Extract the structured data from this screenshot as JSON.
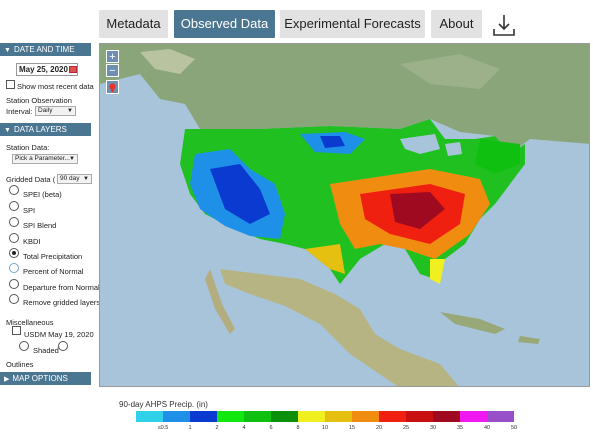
{
  "nav": {
    "metadata": "Metadata",
    "observed": "Observed Data",
    "forecasts": "Experimental Forecasts",
    "about": "About",
    "download_icon": "download-icon"
  },
  "sidebar": {
    "date_time": {
      "header": "DATE AND TIME",
      "date": "May 25, 2020",
      "show_recent": "Show most recent data",
      "station_obs": "Station Observation",
      "interval_label": "Interval:",
      "interval_value": "Daily"
    },
    "data_layers": {
      "header": "DATA LAYERS",
      "station_data_label": "Station Data:",
      "station_data_value": "Pick a Parameter...",
      "gridded_label": "Gridded Data (",
      "gridded_window": "90 day",
      "options": [
        "SPEI (beta)",
        "SPI",
        "SPI Blend",
        "KBDI",
        "Total Precipitation",
        "Percent of Normal",
        "Departure from Normal",
        "Remove gridded layers"
      ],
      "selected_option": "Total Precipitation"
    },
    "misc": {
      "label": "Miscellaneous",
      "usdm": "USDM May 19, 2020",
      "shaded": "Shaded",
      "outlines": "Outlines"
    },
    "map_options": {
      "header": "MAP OPTIONS"
    }
  },
  "map": {
    "zoom_in": "+",
    "zoom_out": "−"
  },
  "legend": {
    "title": "90-day AHPS Precip. (in)",
    "ticks": [
      "≤0.5",
      "1",
      "2",
      "4",
      "6",
      "8",
      "10",
      "15",
      "20",
      "25",
      "30",
      "35",
      "40",
      "50"
    ],
    "colors": [
      "#30d0e8",
      "#1e90e8",
      "#0a3ad0",
      "#10e810",
      "#10c010",
      "#0a900a",
      "#f0f020",
      "#e6c010",
      "#f08c10",
      "#f02010",
      "#c81010",
      "#a00a20",
      "#f018f0",
      "#9850c8"
    ]
  }
}
